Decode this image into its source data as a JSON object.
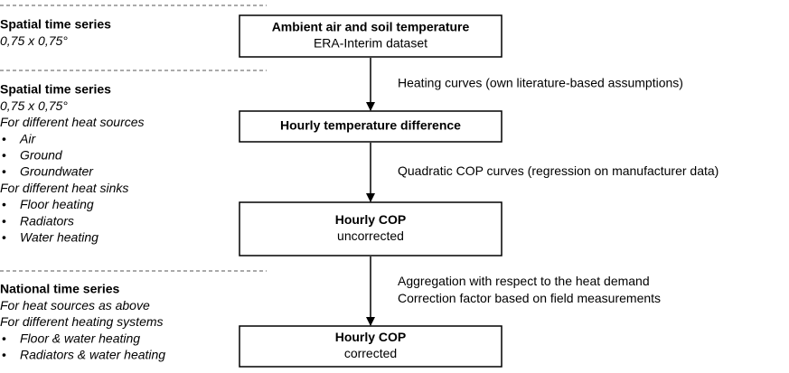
{
  "left_panel": {
    "sections": [
      {
        "title": "Spatial time series",
        "subtitle": "0,75 x 0,75°",
        "groups": []
      },
      {
        "title": "Spatial time series",
        "subtitle": "0,75 x 0,75°",
        "groups": [
          {
            "heading": "For different heat sources",
            "bullets": [
              "Air",
              "Ground",
              "Groundwater"
            ]
          },
          {
            "heading": "For different heat sinks",
            "bullets": [
              "Floor heating",
              "Radiators",
              "Water heating"
            ]
          }
        ]
      },
      {
        "title": "National time series",
        "groups": [
          {
            "heading": "For heat sources as above",
            "bullets": []
          },
          {
            "heading": "For different heating systems",
            "bullets": [
              "Floor & water heating",
              "Radiators & water heating"
            ]
          }
        ]
      }
    ]
  },
  "nodes": [
    {
      "title": "Ambient air and soil temperature",
      "subtitle": "ERA-Interim dataset"
    },
    {
      "title": "Hourly temperature difference"
    },
    {
      "title": "Hourly COP",
      "subtitle": "uncorrected"
    },
    {
      "title": "Hourly COP",
      "subtitle": "corrected"
    }
  ],
  "edges": [
    {
      "labels": [
        "Heating curves (own literature-based assumptions)"
      ]
    },
    {
      "labels": [
        "Quadratic COP curves (regression on manufacturer data)"
      ]
    },
    {
      "labels": [
        "Aggregation with respect to the heat demand",
        "Correction factor based on field measurements"
      ]
    }
  ]
}
